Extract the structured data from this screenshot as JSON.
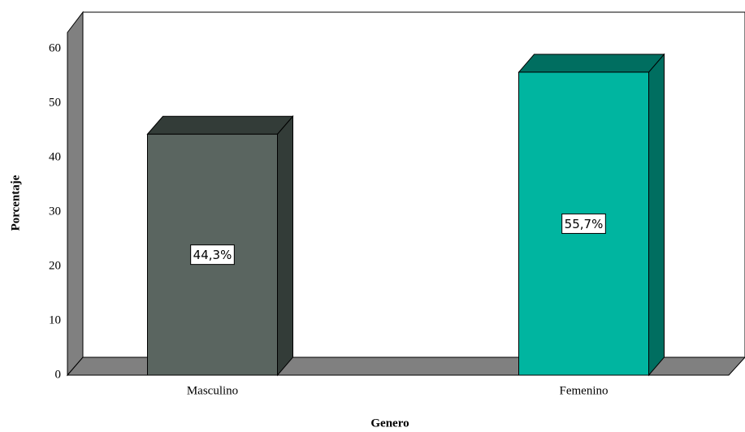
{
  "chart_data": {
    "type": "bar3d",
    "x_label": "Genero",
    "y_label": "Porcentaje",
    "categories": [
      "Masculino",
      "Femenino"
    ],
    "values": [
      44.3,
      55.7
    ],
    "value_labels": [
      "44,3%",
      "55,7%"
    ],
    "colors": [
      "#5a6560",
      "#00b5a0"
    ],
    "shade_colors": [
      "#333c38",
      "#006e60"
    ],
    "ylim": [
      0,
      63
    ],
    "yticks": [
      0,
      10,
      20,
      30,
      40,
      50,
      60
    ],
    "grid": false
  }
}
